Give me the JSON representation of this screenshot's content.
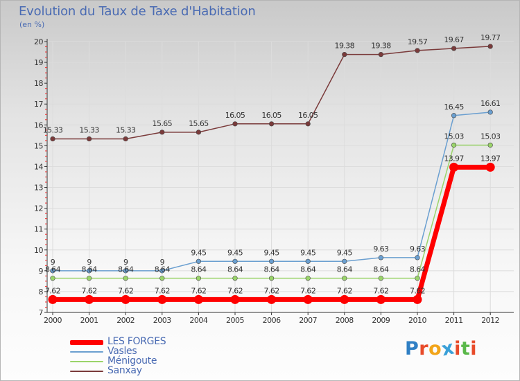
{
  "header": {
    "title": "Evolution du Taux de Taxe d'Habitation",
    "unit": "(en %)"
  },
  "logo": {
    "text": "Proxiti",
    "colors": [
      "#2f7fc4",
      "#e84b2a",
      "#f2a51a",
      "#3aa0d8",
      "#e84b2a",
      "#5ab84a",
      "#e84b2a"
    ]
  },
  "chart_data": {
    "type": "line",
    "title": "Evolution du Taux de Taxe d'Habitation",
    "ylabel": "(en %)",
    "ylim": [
      7,
      20
    ],
    "yticks": [
      7,
      8,
      9,
      10,
      11,
      12,
      13,
      14,
      15,
      16,
      17,
      18,
      19,
      20
    ],
    "x": [
      "2000",
      "2001",
      "2002",
      "2003",
      "2004",
      "2005",
      "2006",
      "2007",
      "2008",
      "2009",
      "2010",
      "2011",
      "2012"
    ],
    "legend_position": "bottom-left",
    "series": [
      {
        "name": "LES FORGES",
        "color": "#ff0000",
        "values": [
          7.62,
          7.62,
          7.62,
          7.62,
          7.62,
          7.62,
          7.62,
          7.62,
          7.62,
          7.62,
          7.62,
          13.97,
          13.97
        ],
        "labels": [
          "7.62",
          "7.62",
          "7.62",
          "7.62",
          "7.62",
          "7.62",
          "7.62",
          "7.62",
          "7.62",
          "7.62",
          "7.62",
          "13.97",
          "13.97"
        ]
      },
      {
        "name": "Vasles",
        "color": "#6a9fd0",
        "values": [
          9,
          9,
          9,
          9,
          9.45,
          9.45,
          9.45,
          9.45,
          9.45,
          9.63,
          9.63,
          16.45,
          16.61
        ],
        "labels": [
          "9",
          "9",
          "9",
          "9",
          "9.45",
          "9.45",
          "9.45",
          "9.45",
          "9.45",
          "9.63",
          "9.63",
          "16.45",
          "16.61"
        ]
      },
      {
        "name": "Ménigoute",
        "color": "#9ad46a",
        "values": [
          8.64,
          8.64,
          8.64,
          8.64,
          8.64,
          8.64,
          8.64,
          8.64,
          8.64,
          8.64,
          8.64,
          15.03,
          15.03
        ],
        "labels": [
          "8.64",
          "8.64",
          "8.64",
          "8.64",
          "8.64",
          "8.64",
          "8.64",
          "8.64",
          "8.64",
          "8.64",
          "8.64",
          "15.03",
          "15.03"
        ]
      },
      {
        "name": "Sanxay",
        "color": "#7a3a3a",
        "values": [
          15.33,
          15.33,
          15.33,
          15.65,
          15.65,
          16.05,
          16.05,
          16.05,
          19.38,
          19.38,
          19.57,
          19.67,
          19.77
        ],
        "labels": [
          "15.33",
          "15.33",
          "15.33",
          "15.65",
          "15.65",
          "16.05",
          "16.05",
          "16.05",
          "19.38",
          "19.38",
          "19.57",
          "19.67",
          "19.77"
        ]
      }
    ]
  }
}
